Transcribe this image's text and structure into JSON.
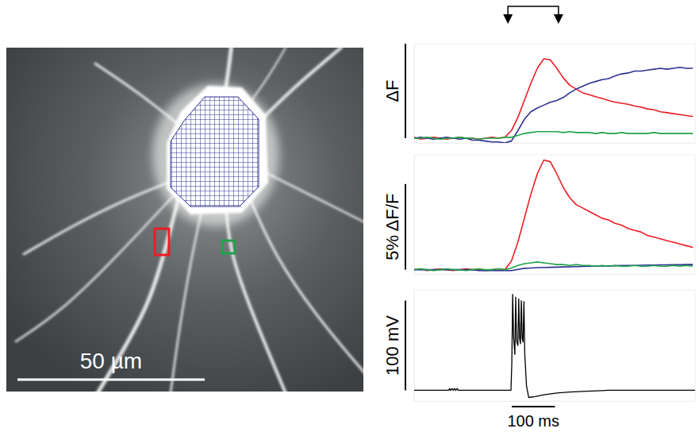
{
  "image": {
    "scale_bar": {
      "value": 50,
      "label": "50 µm"
    },
    "rois": [
      {
        "color": "#2e3192"
      },
      {
        "color": "#ed1c24"
      },
      {
        "color": "#1fa24a"
      }
    ]
  },
  "chart_data": [
    {
      "type": "line",
      "tick_labels": false,
      "xlim": [
        0,
        650
      ],
      "ylim": [
        -0.05,
        1.0
      ],
      "markers_x": [
        217,
        334
      ],
      "scale_bar": {
        "value": 1,
        "label": "ΔF"
      },
      "x": [
        0,
        15,
        30,
        45,
        60,
        75,
        90,
        105,
        120,
        135,
        150,
        165,
        180,
        195,
        210,
        225,
        240,
        255,
        270,
        285,
        300,
        315,
        330,
        345,
        360,
        375,
        390,
        405,
        420,
        435,
        450,
        465,
        480,
        495,
        510,
        525,
        540,
        555,
        570,
        585,
        600,
        615,
        630,
        645
      ],
      "series": [
        {
          "color": "#ed1c24",
          "values": [
            0.01,
            -0.01,
            0,
            0.01,
            0,
            -0.01,
            0,
            0.01,
            0,
            0,
            -0.01,
            0,
            0.01,
            0,
            0.01,
            0.08,
            0.22,
            0.4,
            0.58,
            0.74,
            0.84,
            0.83,
            0.74,
            0.64,
            0.56,
            0.52,
            0.48,
            0.46,
            0.44,
            0.42,
            0.4,
            0.38,
            0.37,
            0.36,
            0.34,
            0.33,
            0.31,
            0.3,
            0.28,
            0.27,
            0.26,
            0.25,
            0.24,
            0.23
          ]
        },
        {
          "color": "#2e3192",
          "values": [
            0,
            0.01,
            0,
            -0.01,
            0,
            0.01,
            0,
            -0.01,
            0,
            -0.02,
            -0.02,
            -0.03,
            -0.04,
            -0.04,
            -0.05,
            -0.03,
            0.08,
            0.2,
            0.28,
            0.32,
            0.35,
            0.38,
            0.4,
            0.43,
            0.48,
            0.52,
            0.55,
            0.58,
            0.6,
            0.62,
            0.63,
            0.66,
            0.68,
            0.69,
            0.71,
            0.71,
            0.72,
            0.73,
            0.74,
            0.73,
            0.74,
            0.75,
            0.74,
            0.74
          ]
        },
        {
          "color": "#1fa24a",
          "values": [
            0,
            0,
            0.01,
            0,
            -0.01,
            0,
            0,
            0.01,
            0,
            0,
            -0.01,
            0,
            0,
            0,
            0.01,
            0.01,
            0.03,
            0.05,
            0.06,
            0.07,
            0.07,
            0.07,
            0.07,
            0.06,
            0.07,
            0.06,
            0.06,
            0.06,
            0.05,
            0.06,
            0.05,
            0.05,
            0.06,
            0.05,
            0.05,
            0.05,
            0.05,
            0.06,
            0.05,
            0.05,
            0.05,
            0.05,
            0.05,
            0.05
          ]
        }
      ]
    },
    {
      "type": "line",
      "tick_labels": false,
      "xlim": [
        0,
        650
      ],
      "ylim": [
        -0.25,
        6.7
      ],
      "scale_bar": {
        "value": 5,
        "label": "5% ΔF/F"
      },
      "x": [
        0,
        15,
        30,
        45,
        60,
        75,
        90,
        105,
        120,
        135,
        150,
        165,
        180,
        195,
        210,
        225,
        240,
        255,
        270,
        285,
        300,
        315,
        330,
        345,
        360,
        375,
        390,
        405,
        420,
        435,
        450,
        465,
        480,
        495,
        510,
        525,
        540,
        555,
        570,
        585,
        600,
        615,
        630,
        645
      ],
      "series": [
        {
          "color": "#ed1c24",
          "values": [
            0,
            0.05,
            -0.05,
            0,
            0.05,
            0,
            -0.05,
            0,
            0.05,
            0,
            0,
            -0.05,
            0,
            0.05,
            0,
            0.5,
            1.6,
            3.0,
            4.4,
            5.6,
            6.4,
            6.3,
            5.6,
            4.8,
            4.2,
            3.8,
            3.6,
            3.4,
            3.2,
            3.0,
            2.9,
            2.7,
            2.6,
            2.4,
            2.3,
            2.2,
            2.0,
            1.9,
            1.8,
            1.7,
            1.6,
            1.5,
            1.4,
            1.3
          ]
        },
        {
          "color": "#2e3192",
          "values": [
            0,
            0,
            0,
            0,
            0,
            0,
            0,
            0,
            0,
            0,
            -0.05,
            -0.05,
            -0.05,
            -0.05,
            -0.05,
            -0.05,
            0.02,
            0.08,
            0.1,
            0.12,
            0.13,
            0.14,
            0.15,
            0.16,
            0.17,
            0.18,
            0.19,
            0.2,
            0.21,
            0.22,
            0.22,
            0.23,
            0.24,
            0.25,
            0.25,
            0.26,
            0.27,
            0.27,
            0.28,
            0.28,
            0.29,
            0.29,
            0.3,
            0.3
          ]
        },
        {
          "color": "#1fa24a",
          "values": [
            0,
            0.05,
            0,
            -0.05,
            0,
            0.05,
            0,
            0,
            -0.05,
            0,
            0.05,
            0,
            0,
            0.05,
            0,
            0.1,
            0.25,
            0.35,
            0.4,
            0.45,
            0.4,
            0.35,
            0.3,
            0.3,
            0.25,
            0.3,
            0.25,
            0.25,
            0.2,
            0.25,
            0.2,
            0.25,
            0.2,
            0.2,
            0.25,
            0.2,
            0.2,
            0.25,
            0.2,
            0.2,
            0.25,
            0.2,
            0.25,
            0.2
          ]
        }
      ]
    },
    {
      "type": "line",
      "tick_labels": false,
      "xlim": [
        0,
        650
      ],
      "ylim": [
        -12,
        112
      ],
      "scale_bar": {
        "value": 100,
        "label": "100 mV"
      },
      "x_scale_bar": {
        "value": 100,
        "label": "100 ms"
      },
      "x": [
        0,
        60,
        80,
        82,
        84,
        88,
        90,
        94,
        96,
        100,
        102,
        200,
        224,
        226,
        228,
        230,
        233,
        235,
        237,
        240,
        242,
        244,
        246,
        248,
        250,
        252,
        254,
        256,
        260,
        265,
        280,
        300,
        330,
        360,
        400,
        450,
        500,
        550,
        600,
        650
      ],
      "series": [
        {
          "color": "#000000",
          "values": [
            0,
            0,
            0,
            2,
            0,
            2,
            0,
            2,
            0,
            2,
            0,
            0,
            0,
            30,
            107,
            60,
            40,
            104,
            55,
            50,
            102,
            58,
            52,
            100,
            58,
            54,
            99,
            40,
            5,
            -8,
            -7,
            -5,
            -3,
            -2,
            -1,
            0,
            0,
            0,
            0,
            0
          ]
        }
      ]
    }
  ]
}
